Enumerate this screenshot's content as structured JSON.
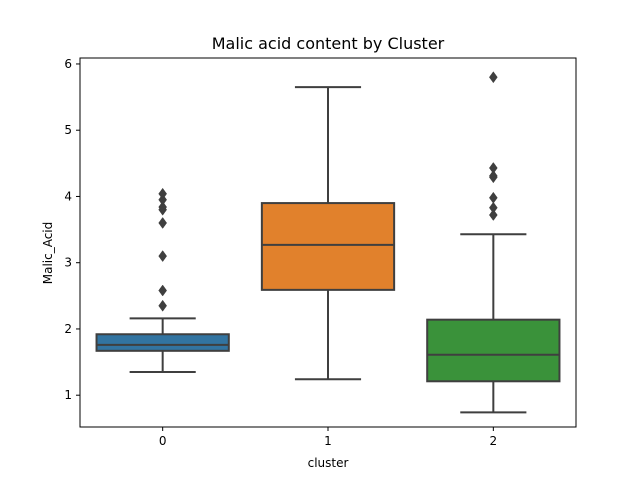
{
  "chart_data": {
    "type": "box",
    "title": "Malic acid content by Cluster",
    "xlabel": "cluster",
    "ylabel": "Malic_Acid",
    "ylim": [
      0.52,
      6.09
    ],
    "yticks": [
      1,
      2,
      3,
      4,
      5,
      6
    ],
    "categories": [
      "0",
      "1",
      "2"
    ],
    "boxes": [
      {
        "category": "0",
        "color": "#3274a1",
        "whisker_low": 1.35,
        "q1": 1.67,
        "median": 1.76,
        "q3": 1.92,
        "whisker_high": 2.16,
        "outliers": [
          2.35,
          2.58,
          3.1,
          3.6,
          3.8,
          3.84,
          3.95,
          4.04
        ]
      },
      {
        "category": "1",
        "color": "#e1812c",
        "whisker_low": 1.24,
        "q1": 2.59,
        "median": 3.27,
        "q3": 3.9,
        "whisker_high": 5.65,
        "outliers": []
      },
      {
        "category": "2",
        "color": "#3a923a",
        "whisker_low": 0.74,
        "q1": 1.21,
        "median": 1.61,
        "q3": 2.14,
        "whisker_high": 3.43,
        "outliers": [
          3.72,
          3.83,
          3.98,
          4.29,
          4.31,
          4.43,
          5.8
        ]
      }
    ],
    "grid": false
  }
}
